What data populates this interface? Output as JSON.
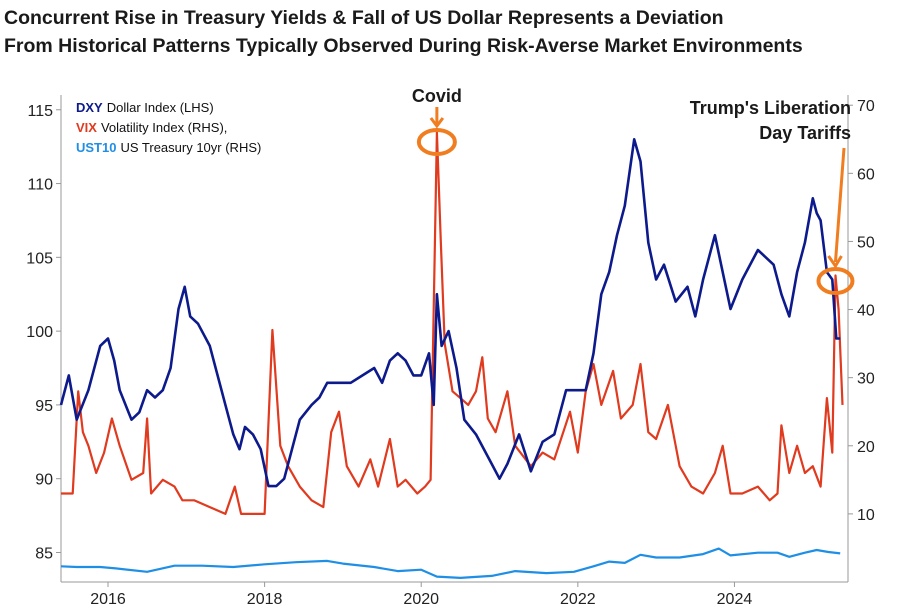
{
  "title": {
    "line1": "Concurrent Rise in Treasury Yields & Fall of US Dollar Represents a Deviation",
    "line2": "From Historical Patterns Typically Observed During Risk-Averse Market Environments"
  },
  "legend": [
    {
      "code": "DXY",
      "label": "Dollar Index (LHS)",
      "color": "#0d1a8c"
    },
    {
      "code": "VIX",
      "label": "Volatility Index (RHS),",
      "color": "#e03a1f"
    },
    {
      "code": "UST10",
      "label": "US Treasury 10yr (RHS)",
      "color": "#1f8fe6"
    }
  ],
  "annotations": {
    "covid": "Covid",
    "tariffs_line1": "Trump's Liberation",
    "tariffs_line2": "Day Tariffs",
    "accent_color": "#f07d1f"
  },
  "chart_data": {
    "type": "line",
    "x_ticks": [
      "2016",
      "2018",
      "2020",
      "2022",
      "2024"
    ],
    "left_axis": {
      "ticks": [
        "85",
        "90",
        "95",
        "100",
        "105",
        "110",
        "115"
      ],
      "ylim": [
        83,
        116
      ]
    },
    "right_axis": {
      "ticks": [
        "10",
        "20",
        "30",
        "40",
        "50",
        "60",
        "70"
      ],
      "ylim": [
        0,
        71.5
      ]
    },
    "xlim": [
      2015.4,
      2025.45
    ],
    "grid": false,
    "legend_position": "top-left",
    "series": [
      {
        "name": "DXY Dollar Index (LHS)",
        "axis": "left",
        "color": "#0d1a8c",
        "points": [
          [
            2015.4,
            95
          ],
          [
            2015.5,
            97
          ],
          [
            2015.6,
            94
          ],
          [
            2015.75,
            96
          ],
          [
            2015.9,
            99
          ],
          [
            2016.0,
            99.5
          ],
          [
            2016.08,
            98
          ],
          [
            2016.15,
            96
          ],
          [
            2016.3,
            94
          ],
          [
            2016.4,
            94.5
          ],
          [
            2016.5,
            96
          ],
          [
            2016.6,
            95.5
          ],
          [
            2016.7,
            96
          ],
          [
            2016.8,
            97.5
          ],
          [
            2016.9,
            101.5
          ],
          [
            2016.98,
            103
          ],
          [
            2017.05,
            101
          ],
          [
            2017.15,
            100.5
          ],
          [
            2017.3,
            99
          ],
          [
            2017.4,
            97
          ],
          [
            2017.5,
            95
          ],
          [
            2017.6,
            93
          ],
          [
            2017.68,
            92
          ],
          [
            2017.75,
            93.5
          ],
          [
            2017.85,
            93
          ],
          [
            2017.95,
            92
          ],
          [
            2018.05,
            89.5
          ],
          [
            2018.15,
            89.5
          ],
          [
            2018.25,
            90
          ],
          [
            2018.35,
            92
          ],
          [
            2018.45,
            94
          ],
          [
            2018.6,
            95
          ],
          [
            2018.7,
            95.5
          ],
          [
            2018.8,
            96.5
          ],
          [
            2018.95,
            96.5
          ],
          [
            2019.1,
            96.5
          ],
          [
            2019.25,
            97
          ],
          [
            2019.4,
            97.5
          ],
          [
            2019.5,
            96.5
          ],
          [
            2019.6,
            98
          ],
          [
            2019.7,
            98.5
          ],
          [
            2019.8,
            98
          ],
          [
            2019.9,
            97
          ],
          [
            2020.0,
            97
          ],
          [
            2020.1,
            98.5
          ],
          [
            2020.16,
            95
          ],
          [
            2020.2,
            102.5
          ],
          [
            2020.26,
            99
          ],
          [
            2020.35,
            100
          ],
          [
            2020.45,
            97.5
          ],
          [
            2020.55,
            94
          ],
          [
            2020.7,
            93
          ],
          [
            2020.9,
            91
          ],
          [
            2021.0,
            90
          ],
          [
            2021.1,
            91
          ],
          [
            2021.25,
            93
          ],
          [
            2021.4,
            90.5
          ],
          [
            2021.55,
            92.5
          ],
          [
            2021.7,
            93
          ],
          [
            2021.85,
            96
          ],
          [
            2022.0,
            96
          ],
          [
            2022.1,
            96
          ],
          [
            2022.2,
            98.5
          ],
          [
            2022.3,
            102.5
          ],
          [
            2022.4,
            104
          ],
          [
            2022.5,
            106.5
          ],
          [
            2022.6,
            108.5
          ],
          [
            2022.72,
            113
          ],
          [
            2022.8,
            111.5
          ],
          [
            2022.9,
            106
          ],
          [
            2023.0,
            103.5
          ],
          [
            2023.1,
            104.5
          ],
          [
            2023.25,
            102
          ],
          [
            2023.4,
            103
          ],
          [
            2023.5,
            101
          ],
          [
            2023.6,
            103.5
          ],
          [
            2023.75,
            106.5
          ],
          [
            2023.85,
            104
          ],
          [
            2023.95,
            101.5
          ],
          [
            2024.1,
            103.5
          ],
          [
            2024.3,
            105.5
          ],
          [
            2024.5,
            104.5
          ],
          [
            2024.6,
            102.5
          ],
          [
            2024.7,
            101
          ],
          [
            2024.8,
            104
          ],
          [
            2024.9,
            106
          ],
          [
            2025.0,
            109
          ],
          [
            2025.05,
            108
          ],
          [
            2025.1,
            107.5
          ],
          [
            2025.18,
            104
          ],
          [
            2025.25,
            103.5
          ],
          [
            2025.3,
            99.5
          ],
          [
            2025.35,
            99.5
          ]
        ]
      },
      {
        "name": "VIX Volatility Index (RHS)",
        "axis": "right",
        "color": "#e03a1f",
        "points": [
          [
            2015.4,
            13
          ],
          [
            2015.55,
            13
          ],
          [
            2015.62,
            28
          ],
          [
            2015.68,
            22
          ],
          [
            2015.75,
            20
          ],
          [
            2015.85,
            16
          ],
          [
            2015.95,
            19
          ],
          [
            2016.05,
            24
          ],
          [
            2016.15,
            20
          ],
          [
            2016.3,
            15
          ],
          [
            2016.45,
            16
          ],
          [
            2016.5,
            24
          ],
          [
            2016.55,
            13
          ],
          [
            2016.7,
            15
          ],
          [
            2016.85,
            14
          ],
          [
            2016.95,
            12
          ],
          [
            2017.1,
            12
          ],
          [
            2017.3,
            11
          ],
          [
            2017.5,
            10
          ],
          [
            2017.62,
            14
          ],
          [
            2017.7,
            10
          ],
          [
            2017.9,
            10
          ],
          [
            2018.0,
            10
          ],
          [
            2018.1,
            37
          ],
          [
            2018.2,
            20
          ],
          [
            2018.3,
            17
          ],
          [
            2018.45,
            14
          ],
          [
            2018.6,
            12
          ],
          [
            2018.75,
            11
          ],
          [
            2018.85,
            22
          ],
          [
            2018.95,
            25
          ],
          [
            2019.05,
            17
          ],
          [
            2019.2,
            14
          ],
          [
            2019.35,
            18
          ],
          [
            2019.45,
            14
          ],
          [
            2019.6,
            21
          ],
          [
            2019.7,
            14
          ],
          [
            2019.8,
            15
          ],
          [
            2019.95,
            13
          ],
          [
            2020.05,
            14
          ],
          [
            2020.12,
            15
          ],
          [
            2020.16,
            40
          ],
          [
            2020.2,
            66
          ],
          [
            2020.25,
            50
          ],
          [
            2020.3,
            35
          ],
          [
            2020.4,
            28
          ],
          [
            2020.5,
            27
          ],
          [
            2020.6,
            26
          ],
          [
            2020.7,
            28
          ],
          [
            2020.78,
            33
          ],
          [
            2020.85,
            24
          ],
          [
            2020.95,
            22
          ],
          [
            2021.1,
            28
          ],
          [
            2021.2,
            20
          ],
          [
            2021.4,
            17
          ],
          [
            2021.55,
            19
          ],
          [
            2021.7,
            18
          ],
          [
            2021.9,
            25
          ],
          [
            2022.0,
            19
          ],
          [
            2022.1,
            28
          ],
          [
            2022.2,
            32
          ],
          [
            2022.3,
            26
          ],
          [
            2022.45,
            31
          ],
          [
            2022.55,
            24
          ],
          [
            2022.7,
            26
          ],
          [
            2022.8,
            32
          ],
          [
            2022.9,
            22
          ],
          [
            2023.0,
            21
          ],
          [
            2023.15,
            26
          ],
          [
            2023.3,
            17
          ],
          [
            2023.45,
            14
          ],
          [
            2023.6,
            13
          ],
          [
            2023.75,
            16
          ],
          [
            2023.85,
            20
          ],
          [
            2023.95,
            13
          ],
          [
            2024.1,
            13
          ],
          [
            2024.3,
            14
          ],
          [
            2024.45,
            12
          ],
          [
            2024.55,
            13
          ],
          [
            2024.6,
            23
          ],
          [
            2024.7,
            16
          ],
          [
            2024.8,
            20
          ],
          [
            2024.9,
            16
          ],
          [
            2025.0,
            17
          ],
          [
            2025.1,
            14
          ],
          [
            2025.18,
            27
          ],
          [
            2025.25,
            19
          ],
          [
            2025.29,
            45
          ],
          [
            2025.33,
            40
          ],
          [
            2025.38,
            26
          ]
        ]
      },
      {
        "name": "UST10 US Treasury 10yr (RHS)",
        "axis": "right",
        "color": "#1f8fe6",
        "points": [
          [
            2015.4,
            2.3
          ],
          [
            2015.6,
            2.2
          ],
          [
            2015.9,
            2.2
          ],
          [
            2016.1,
            2.0
          ],
          [
            2016.5,
            1.5
          ],
          [
            2016.85,
            2.4
          ],
          [
            2017.2,
            2.4
          ],
          [
            2017.6,
            2.2
          ],
          [
            2018.0,
            2.6
          ],
          [
            2018.4,
            2.9
          ],
          [
            2018.8,
            3.1
          ],
          [
            2019.0,
            2.7
          ],
          [
            2019.4,
            2.2
          ],
          [
            2019.7,
            1.6
          ],
          [
            2020.0,
            1.8
          ],
          [
            2020.2,
            0.8
          ],
          [
            2020.5,
            0.6
          ],
          [
            2020.9,
            0.9
          ],
          [
            2021.2,
            1.6
          ],
          [
            2021.6,
            1.3
          ],
          [
            2021.95,
            1.5
          ],
          [
            2022.2,
            2.3
          ],
          [
            2022.4,
            3.0
          ],
          [
            2022.6,
            2.8
          ],
          [
            2022.8,
            4.0
          ],
          [
            2023.0,
            3.6
          ],
          [
            2023.3,
            3.6
          ],
          [
            2023.6,
            4.1
          ],
          [
            2023.8,
            4.9
          ],
          [
            2023.95,
            3.9
          ],
          [
            2024.3,
            4.3
          ],
          [
            2024.55,
            4.3
          ],
          [
            2024.7,
            3.7
          ],
          [
            2024.9,
            4.3
          ],
          [
            2025.05,
            4.7
          ],
          [
            2025.2,
            4.4
          ],
          [
            2025.35,
            4.2
          ]
        ]
      }
    ]
  }
}
